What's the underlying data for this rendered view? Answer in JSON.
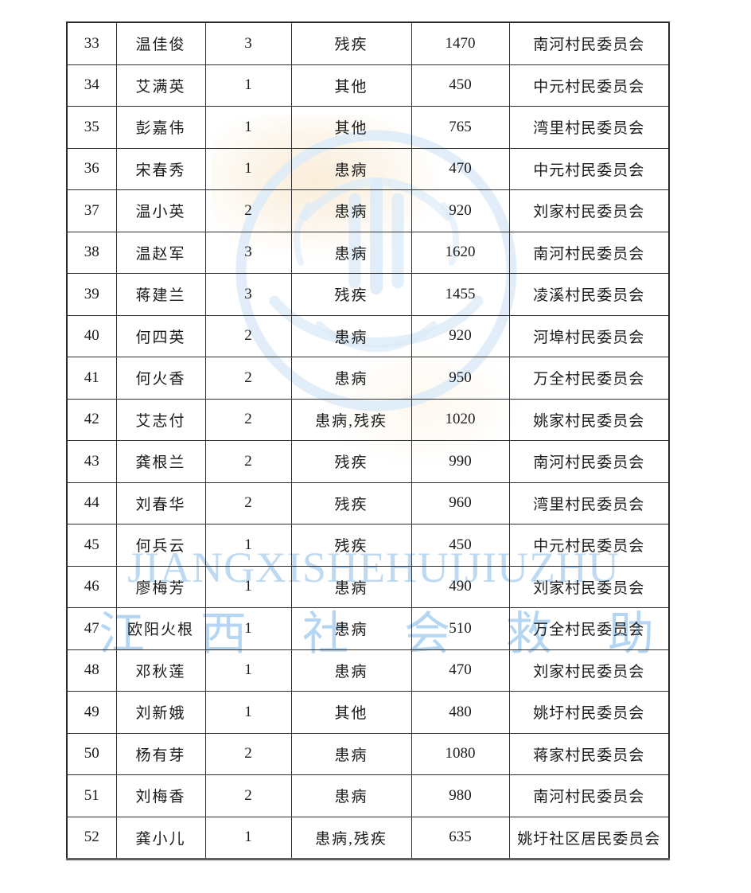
{
  "page": {
    "background": "#ffffff"
  },
  "table": {
    "column_keys": [
      "no",
      "name",
      "members",
      "category",
      "amount",
      "committee"
    ],
    "rows": [
      {
        "no": "33",
        "name": "温佳俊",
        "members": "3",
        "category": "残疾",
        "amount": "1470",
        "committee": "南河村民委员会"
      },
      {
        "no": "34",
        "name": "艾满英",
        "members": "1",
        "category": "其他",
        "amount": "450",
        "committee": "中元村民委员会"
      },
      {
        "no": "35",
        "name": "彭嘉伟",
        "members": "1",
        "category": "其他",
        "amount": "765",
        "committee": "湾里村民委员会"
      },
      {
        "no": "36",
        "name": "宋春秀",
        "members": "1",
        "category": "患病",
        "amount": "470",
        "committee": "中元村民委员会"
      },
      {
        "no": "37",
        "name": "温小英",
        "members": "2",
        "category": "患病",
        "amount": "920",
        "committee": "刘家村民委员会"
      },
      {
        "no": "38",
        "name": "温赵军",
        "members": "3",
        "category": "患病",
        "amount": "1620",
        "committee": "南河村民委员会"
      },
      {
        "no": "39",
        "name": "蒋建兰",
        "members": "3",
        "category": "残疾",
        "amount": "1455",
        "committee": "凌溪村民委员会"
      },
      {
        "no": "40",
        "name": "何四英",
        "members": "2",
        "category": "患病",
        "amount": "920",
        "committee": "河埠村民委员会"
      },
      {
        "no": "41",
        "name": "何火香",
        "members": "2",
        "category": "患病",
        "amount": "950",
        "committee": "万全村民委员会"
      },
      {
        "no": "42",
        "name": "艾志付",
        "members": "2",
        "category": "患病,残疾",
        "amount": "1020",
        "committee": "姚家村民委员会"
      },
      {
        "no": "43",
        "name": "龚根兰",
        "members": "2",
        "category": "残疾",
        "amount": "990",
        "committee": "南河村民委员会"
      },
      {
        "no": "44",
        "name": "刘春华",
        "members": "2",
        "category": "残疾",
        "amount": "960",
        "committee": "湾里村民委员会"
      },
      {
        "no": "45",
        "name": "何兵云",
        "members": "1",
        "category": "残疾",
        "amount": "450",
        "committee": "中元村民委员会"
      },
      {
        "no": "46",
        "name": "廖梅芳",
        "members": "1",
        "category": "患病",
        "amount": "490",
        "committee": "刘家村民委员会"
      },
      {
        "no": "47",
        "name": "欧阳火根",
        "members": "1",
        "category": "患病",
        "amount": "510",
        "committee": "万全村民委员会"
      },
      {
        "no": "48",
        "name": "邓秋莲",
        "members": "1",
        "category": "患病",
        "amount": "470",
        "committee": "刘家村民委员会"
      },
      {
        "no": "49",
        "name": "刘新娥",
        "members": "1",
        "category": "其他",
        "amount": "480",
        "committee": "姚圩村民委员会"
      },
      {
        "no": "50",
        "name": "杨有芽",
        "members": "2",
        "category": "患病",
        "amount": "1080",
        "committee": "蒋家村民委员会"
      },
      {
        "no": "51",
        "name": "刘梅香",
        "members": "2",
        "category": "患病",
        "amount": "980",
        "committee": "南河村民委员会"
      },
      {
        "no": "52",
        "name": "龚小儿",
        "members": "1",
        "category": "患病,残疾",
        "amount": "635",
        "committee": "姚圩社区居民委员会"
      }
    ]
  },
  "watermark": {
    "latin": "JIANGXISHEHUIJIUZHU",
    "cjk": "江西社会救助",
    "colors": {
      "latin_text": "#bedaf2",
      "cjk_text": "#b4d6f2",
      "emblem": "#dcebf8",
      "glow": "#faeedd"
    }
  }
}
